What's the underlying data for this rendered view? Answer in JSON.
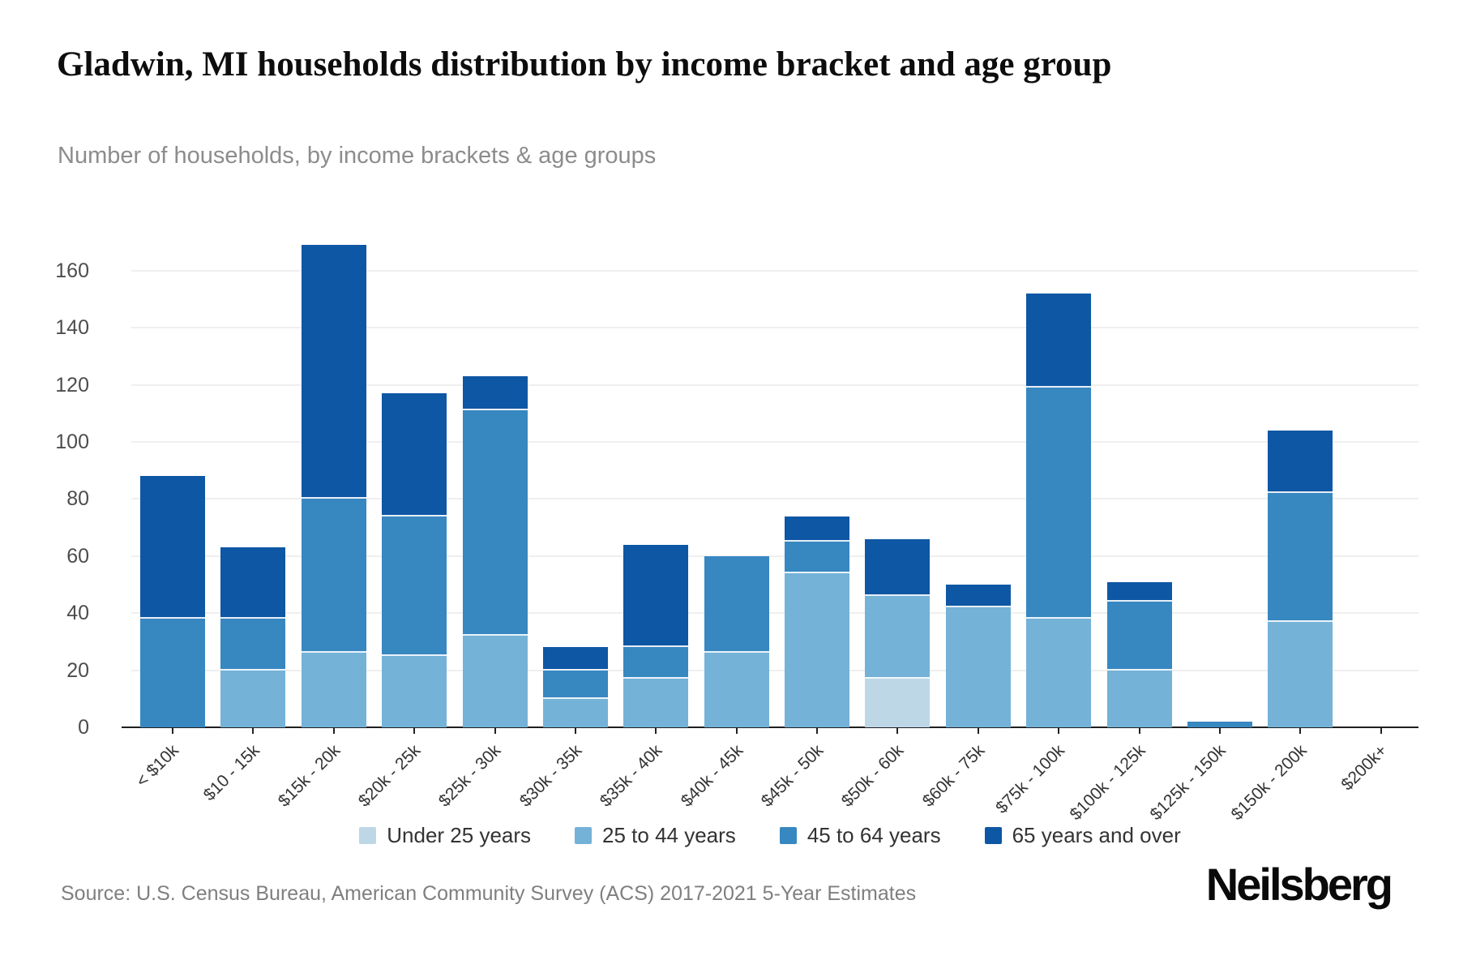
{
  "title": "Gladwin, MI households distribution by income bracket and age group",
  "subtitle": "Number of households, by income brackets & age groups",
  "source": "Source: U.S. Census Bureau, American Community Survey (ACS) 2017-2021 5-Year Estimates",
  "brand": "Neilsberg",
  "chart_data": {
    "type": "bar",
    "stacked": true,
    "title": "Gladwin, MI households distribution by income bracket and age group",
    "subtitle": "Number of households, by income brackets & age groups",
    "xlabel": "",
    "ylabel": "Number of households",
    "ylim": [
      0,
      170
    ],
    "yticks": [
      0,
      20,
      40,
      60,
      80,
      100,
      120,
      140,
      160
    ],
    "grid": true,
    "legend_position": "bottom",
    "categories": [
      "< $10k",
      "$10 - 15k",
      "$15k - 20k",
      "$20k - 25k",
      "$25k - 30k",
      "$30k - 35k",
      "$35k - 40k",
      "$40k - 45k",
      "$45k - 50k",
      "$50k - 60k",
      "$60k - 75k",
      "$75k - 100k",
      "$100k - 125k",
      "$125k - 150k",
      "$150k - 200k",
      "$200k+"
    ],
    "series": [
      {
        "name": "Under 25 years",
        "color": "#bdd7e7",
        "values": [
          0,
          0,
          0,
          0,
          0,
          0,
          0,
          0,
          0,
          17,
          0,
          0,
          0,
          0,
          0,
          0
        ]
      },
      {
        "name": "25 to 44 years",
        "color": "#74b2d8",
        "values": [
          0,
          20,
          26,
          25,
          32,
          10,
          17,
          26,
          54,
          29,
          42,
          38,
          20,
          0,
          37,
          0
        ]
      },
      {
        "name": "45 to 64 years",
        "color": "#3787c1",
        "values": [
          38,
          18,
          54,
          49,
          79,
          10,
          11,
          34,
          11,
          0,
          0,
          81,
          24,
          2,
          45,
          0
        ]
      },
      {
        "name": "65 years and over",
        "color": "#0e57a4",
        "values": [
          50,
          25,
          89,
          43,
          12,
          8,
          36,
          0,
          9,
          20,
          8,
          33,
          7,
          0,
          22,
          0
        ]
      }
    ],
    "totals": [
      88,
      63,
      169,
      117,
      123,
      28,
      64,
      60,
      74,
      66,
      50,
      152,
      51,
      2,
      104,
      0
    ]
  }
}
